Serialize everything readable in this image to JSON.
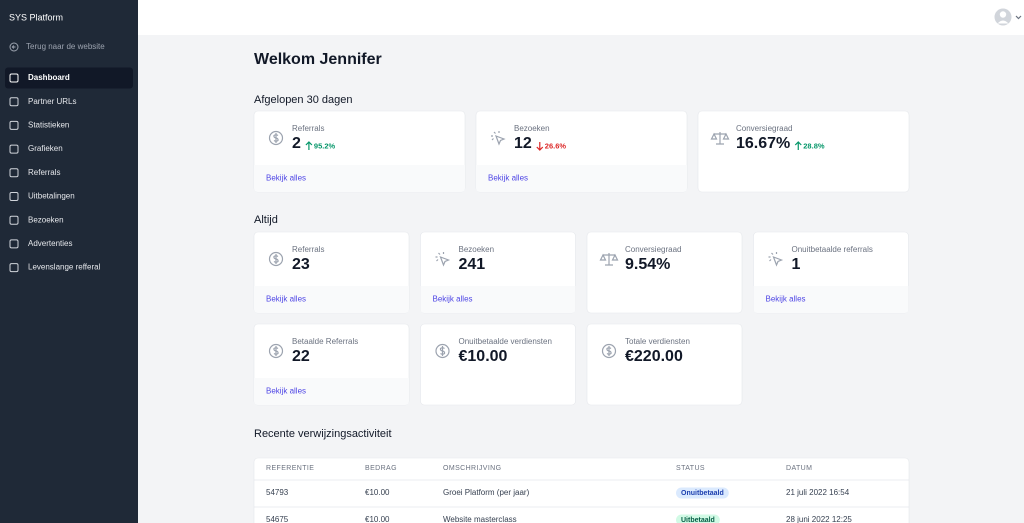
{
  "sidebar": {
    "brand": "SYS Platform",
    "back_link": "Terug naar de website",
    "nav": [
      {
        "label": "Dashboard",
        "active": true
      },
      {
        "label": "Partner URLs",
        "active": false
      },
      {
        "label": "Statistieken",
        "active": false
      },
      {
        "label": "Grafieken",
        "active": false
      },
      {
        "label": "Referrals",
        "active": false
      },
      {
        "label": "Uitbetalingen",
        "active": false
      },
      {
        "label": "Bezoeken",
        "active": false
      },
      {
        "label": "Advertenties",
        "active": false
      },
      {
        "label": "Levenslange refferal",
        "active": false
      }
    ]
  },
  "main": {
    "greeting": "Welkom Jennifer",
    "sections": [
      {
        "title": "Afgelopen 30 dagen",
        "cards": [
          {
            "label": "Referrals",
            "value": "2",
            "change": "95.2%",
            "direction": "up",
            "link": "Bekijk alles"
          },
          {
            "label": "Bezoeken",
            "value": "12",
            "change": "26.6%",
            "direction": "down",
            "link": "Bekijk alles"
          },
          {
            "label": "Conversiegraad",
            "value": "16.67%",
            "change": "28.8%",
            "direction": "up"
          }
        ]
      },
      {
        "title": "Altijd",
        "cards": [
          {
            "label": "Referrals",
            "value": "23",
            "link": "Bekijk alles"
          },
          {
            "label": "Bezoeken",
            "value": "241",
            "link": "Bekijk alles"
          },
          {
            "label": "Conversiegraad",
            "value": "9.54%"
          },
          {
            "label": "Onuitbetaalde referrals",
            "value": "1",
            "link": "Bekijk alles"
          },
          {
            "label": "Betaalde Referrals",
            "value": "22",
            "link": "Bekijk alles"
          },
          {
            "label": "Onuitbetaalde verdiensten",
            "value": "€10.00"
          },
          {
            "label": "Totale verdiensten",
            "value": "€220.00"
          }
        ]
      }
    ],
    "activity": {
      "title": "Recente verwijzingsactiviteit",
      "columns": [
        "REFERENTIE",
        "BEDRAG",
        "OMSCHRIJVING",
        "STATUS",
        "DATUM"
      ],
      "rows": [
        [
          "54793",
          "€10.00",
          "Groei Platform (per jaar)",
          "Onuitbetaald",
          "21 juli 2022 16:54"
        ],
        [
          "54675",
          "€10.00",
          "Website masterclass",
          "Uitbetaald",
          "28 juni 2022 12:25"
        ]
      ]
    }
  }
}
